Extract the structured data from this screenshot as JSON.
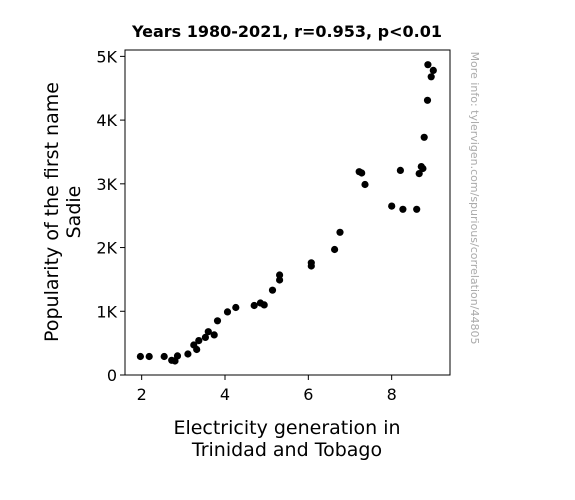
{
  "chart_data": {
    "type": "scatter",
    "title": "Years 1980-2021, r=0.953, p<0.01",
    "xlabel": [
      "Electricity generation in",
      "Trinidad and Tobago"
    ],
    "ylabel": [
      "Popularity of the first name",
      "Sadie"
    ],
    "xlim": [
      1.6,
      9.4
    ],
    "ylim": [
      0,
      5100
    ],
    "xticks": [
      2,
      4,
      6,
      8
    ],
    "xtick_labels": [
      "2",
      "4",
      "6",
      "8"
    ],
    "yticks": [
      0,
      1000,
      2000,
      3000,
      4000,
      5000
    ],
    "ytick_labels": [
      "0",
      "1K",
      "2K",
      "3K",
      "4K",
      "5K"
    ],
    "grid": false,
    "marker_color": "#000000",
    "side_note": "More info: tylervigen.com/spurious/correlation/44805",
    "points": [
      {
        "x": 1.97,
        "y": 290
      },
      {
        "x": 2.18,
        "y": 290
      },
      {
        "x": 2.54,
        "y": 290
      },
      {
        "x": 2.72,
        "y": 230
      },
      {
        "x": 2.8,
        "y": 220
      },
      {
        "x": 2.86,
        "y": 300
      },
      {
        "x": 3.11,
        "y": 330
      },
      {
        "x": 3.25,
        "y": 470
      },
      {
        "x": 3.32,
        "y": 400
      },
      {
        "x": 3.37,
        "y": 540
      },
      {
        "x": 3.53,
        "y": 590
      },
      {
        "x": 3.6,
        "y": 680
      },
      {
        "x": 3.74,
        "y": 630
      },
      {
        "x": 3.82,
        "y": 850
      },
      {
        "x": 4.06,
        "y": 990
      },
      {
        "x": 4.26,
        "y": 1060
      },
      {
        "x": 4.7,
        "y": 1090
      },
      {
        "x": 4.85,
        "y": 1130
      },
      {
        "x": 4.94,
        "y": 1100
      },
      {
        "x": 5.14,
        "y": 1330
      },
      {
        "x": 5.31,
        "y": 1490
      },
      {
        "x": 5.31,
        "y": 1570
      },
      {
        "x": 6.07,
        "y": 1710
      },
      {
        "x": 6.07,
        "y": 1760
      },
      {
        "x": 6.63,
        "y": 1970
      },
      {
        "x": 6.76,
        "y": 2240
      },
      {
        "x": 7.22,
        "y": 3190
      },
      {
        "x": 7.28,
        "y": 3170
      },
      {
        "x": 7.36,
        "y": 2990
      },
      {
        "x": 8.0,
        "y": 2650
      },
      {
        "x": 8.21,
        "y": 3210
      },
      {
        "x": 8.27,
        "y": 2600
      },
      {
        "x": 8.6,
        "y": 2600
      },
      {
        "x": 8.66,
        "y": 3160
      },
      {
        "x": 8.71,
        "y": 3270
      },
      {
        "x": 8.75,
        "y": 3240
      },
      {
        "x": 8.78,
        "y": 3730
      },
      {
        "x": 8.86,
        "y": 4310
      },
      {
        "x": 8.87,
        "y": 4870
      },
      {
        "x": 8.95,
        "y": 4680
      },
      {
        "x": 9.0,
        "y": 4780
      }
    ]
  }
}
